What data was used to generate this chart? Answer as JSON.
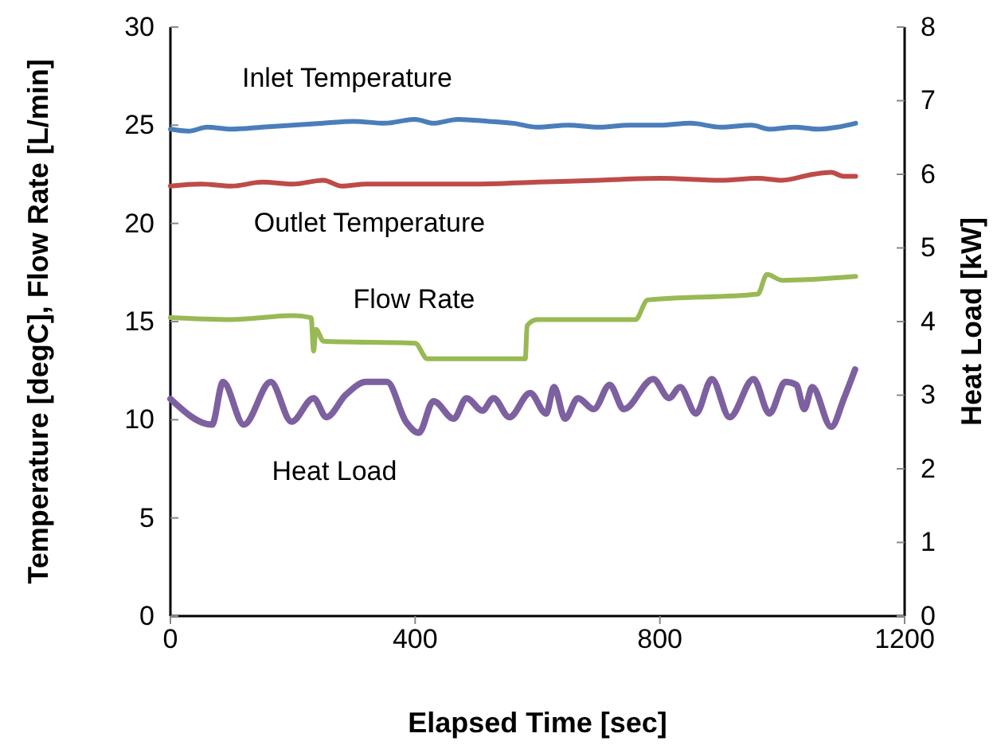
{
  "chart_data": {
    "type": "line",
    "xlabel": "Elapsed Time [sec]",
    "ylabel": "Temperature [degC], Flow Rate [L/min]",
    "y2label": "Heat Load [kW]",
    "xlim": [
      0,
      1200
    ],
    "xticks": [
      0,
      400,
      800,
      1200
    ],
    "ylim": [
      0,
      30
    ],
    "yticks": [
      0,
      5,
      10,
      15,
      20,
      25,
      30
    ],
    "y2lim": [
      0,
      8
    ],
    "y2ticks": [
      0,
      1,
      2,
      3,
      4,
      5,
      6,
      7,
      8
    ],
    "grid": false,
    "marker": "none",
    "line_style": "solid",
    "series": [
      {
        "name": "Inlet Temperature",
        "color": "#4a7ebb",
        "x": [
          0,
          30,
          60,
          100,
          150,
          200,
          250,
          300,
          350,
          400,
          430,
          470,
          520,
          560,
          600,
          650,
          700,
          750,
          800,
          850,
          900,
          950,
          980,
          1020,
          1060,
          1090,
          1120
        ],
        "values": [
          24.8,
          24.7,
          24.9,
          24.8,
          24.9,
          25.0,
          25.1,
          25.2,
          25.1,
          25.3,
          25.1,
          25.3,
          25.2,
          25.1,
          24.9,
          25.0,
          24.9,
          25.0,
          25.0,
          25.1,
          24.9,
          25.0,
          24.8,
          24.9,
          24.8,
          24.9,
          25.1
        ]
      },
      {
        "name": "Outlet Temperature",
        "color": "#be4b48",
        "x": [
          0,
          50,
          100,
          150,
          200,
          250,
          280,
          320,
          400,
          500,
          600,
          700,
          800,
          900,
          960,
          1000,
          1050,
          1080,
          1100,
          1120
        ],
        "values": [
          21.9,
          22.0,
          21.9,
          22.1,
          22.0,
          22.2,
          21.9,
          22.0,
          22.0,
          22.0,
          22.1,
          22.2,
          22.3,
          22.2,
          22.3,
          22.2,
          22.5,
          22.6,
          22.4,
          22.4
        ]
      },
      {
        "name": "Flow Rate",
        "color": "#98b954",
        "x": [
          0,
          100,
          200,
          230,
          234,
          238,
          250,
          400,
          420,
          580,
          583,
          600,
          760,
          780,
          960,
          975,
          1000,
          1120
        ],
        "values": [
          15.2,
          15.1,
          15.3,
          15.2,
          13.5,
          14.6,
          14.0,
          13.9,
          13.1,
          13.1,
          14.8,
          15.1,
          15.1,
          16.1,
          16.4,
          17.4,
          17.1,
          17.3
        ]
      },
      {
        "name": "Heat Load",
        "color": "#7d60a0",
        "axis": "y2",
        "x": [
          0,
          68,
          86,
          120,
          164,
          198,
          234,
          255,
          286,
          320,
          354,
          385,
          406,
          430,
          463,
          484,
          510,
          528,
          554,
          588,
          614,
          627,
          645,
          666,
          692,
          718,
          741,
          789,
          815,
          833,
          859,
          885,
          914,
          953,
          979,
          1005,
          1023,
          1036,
          1049,
          1080,
          1101,
          1119
        ],
        "values": [
          2.95,
          2.6,
          3.18,
          2.6,
          3.18,
          2.64,
          2.96,
          2.7,
          3.0,
          3.18,
          3.18,
          2.64,
          2.49,
          2.92,
          2.68,
          2.96,
          2.79,
          2.96,
          2.7,
          3.03,
          2.75,
          3.11,
          2.68,
          2.96,
          2.81,
          3.14,
          2.81,
          3.22,
          2.96,
          3.11,
          2.75,
          3.22,
          2.7,
          3.22,
          2.75,
          3.18,
          3.14,
          2.81,
          3.11,
          2.57,
          2.96,
          3.35
        ]
      }
    ]
  }
}
